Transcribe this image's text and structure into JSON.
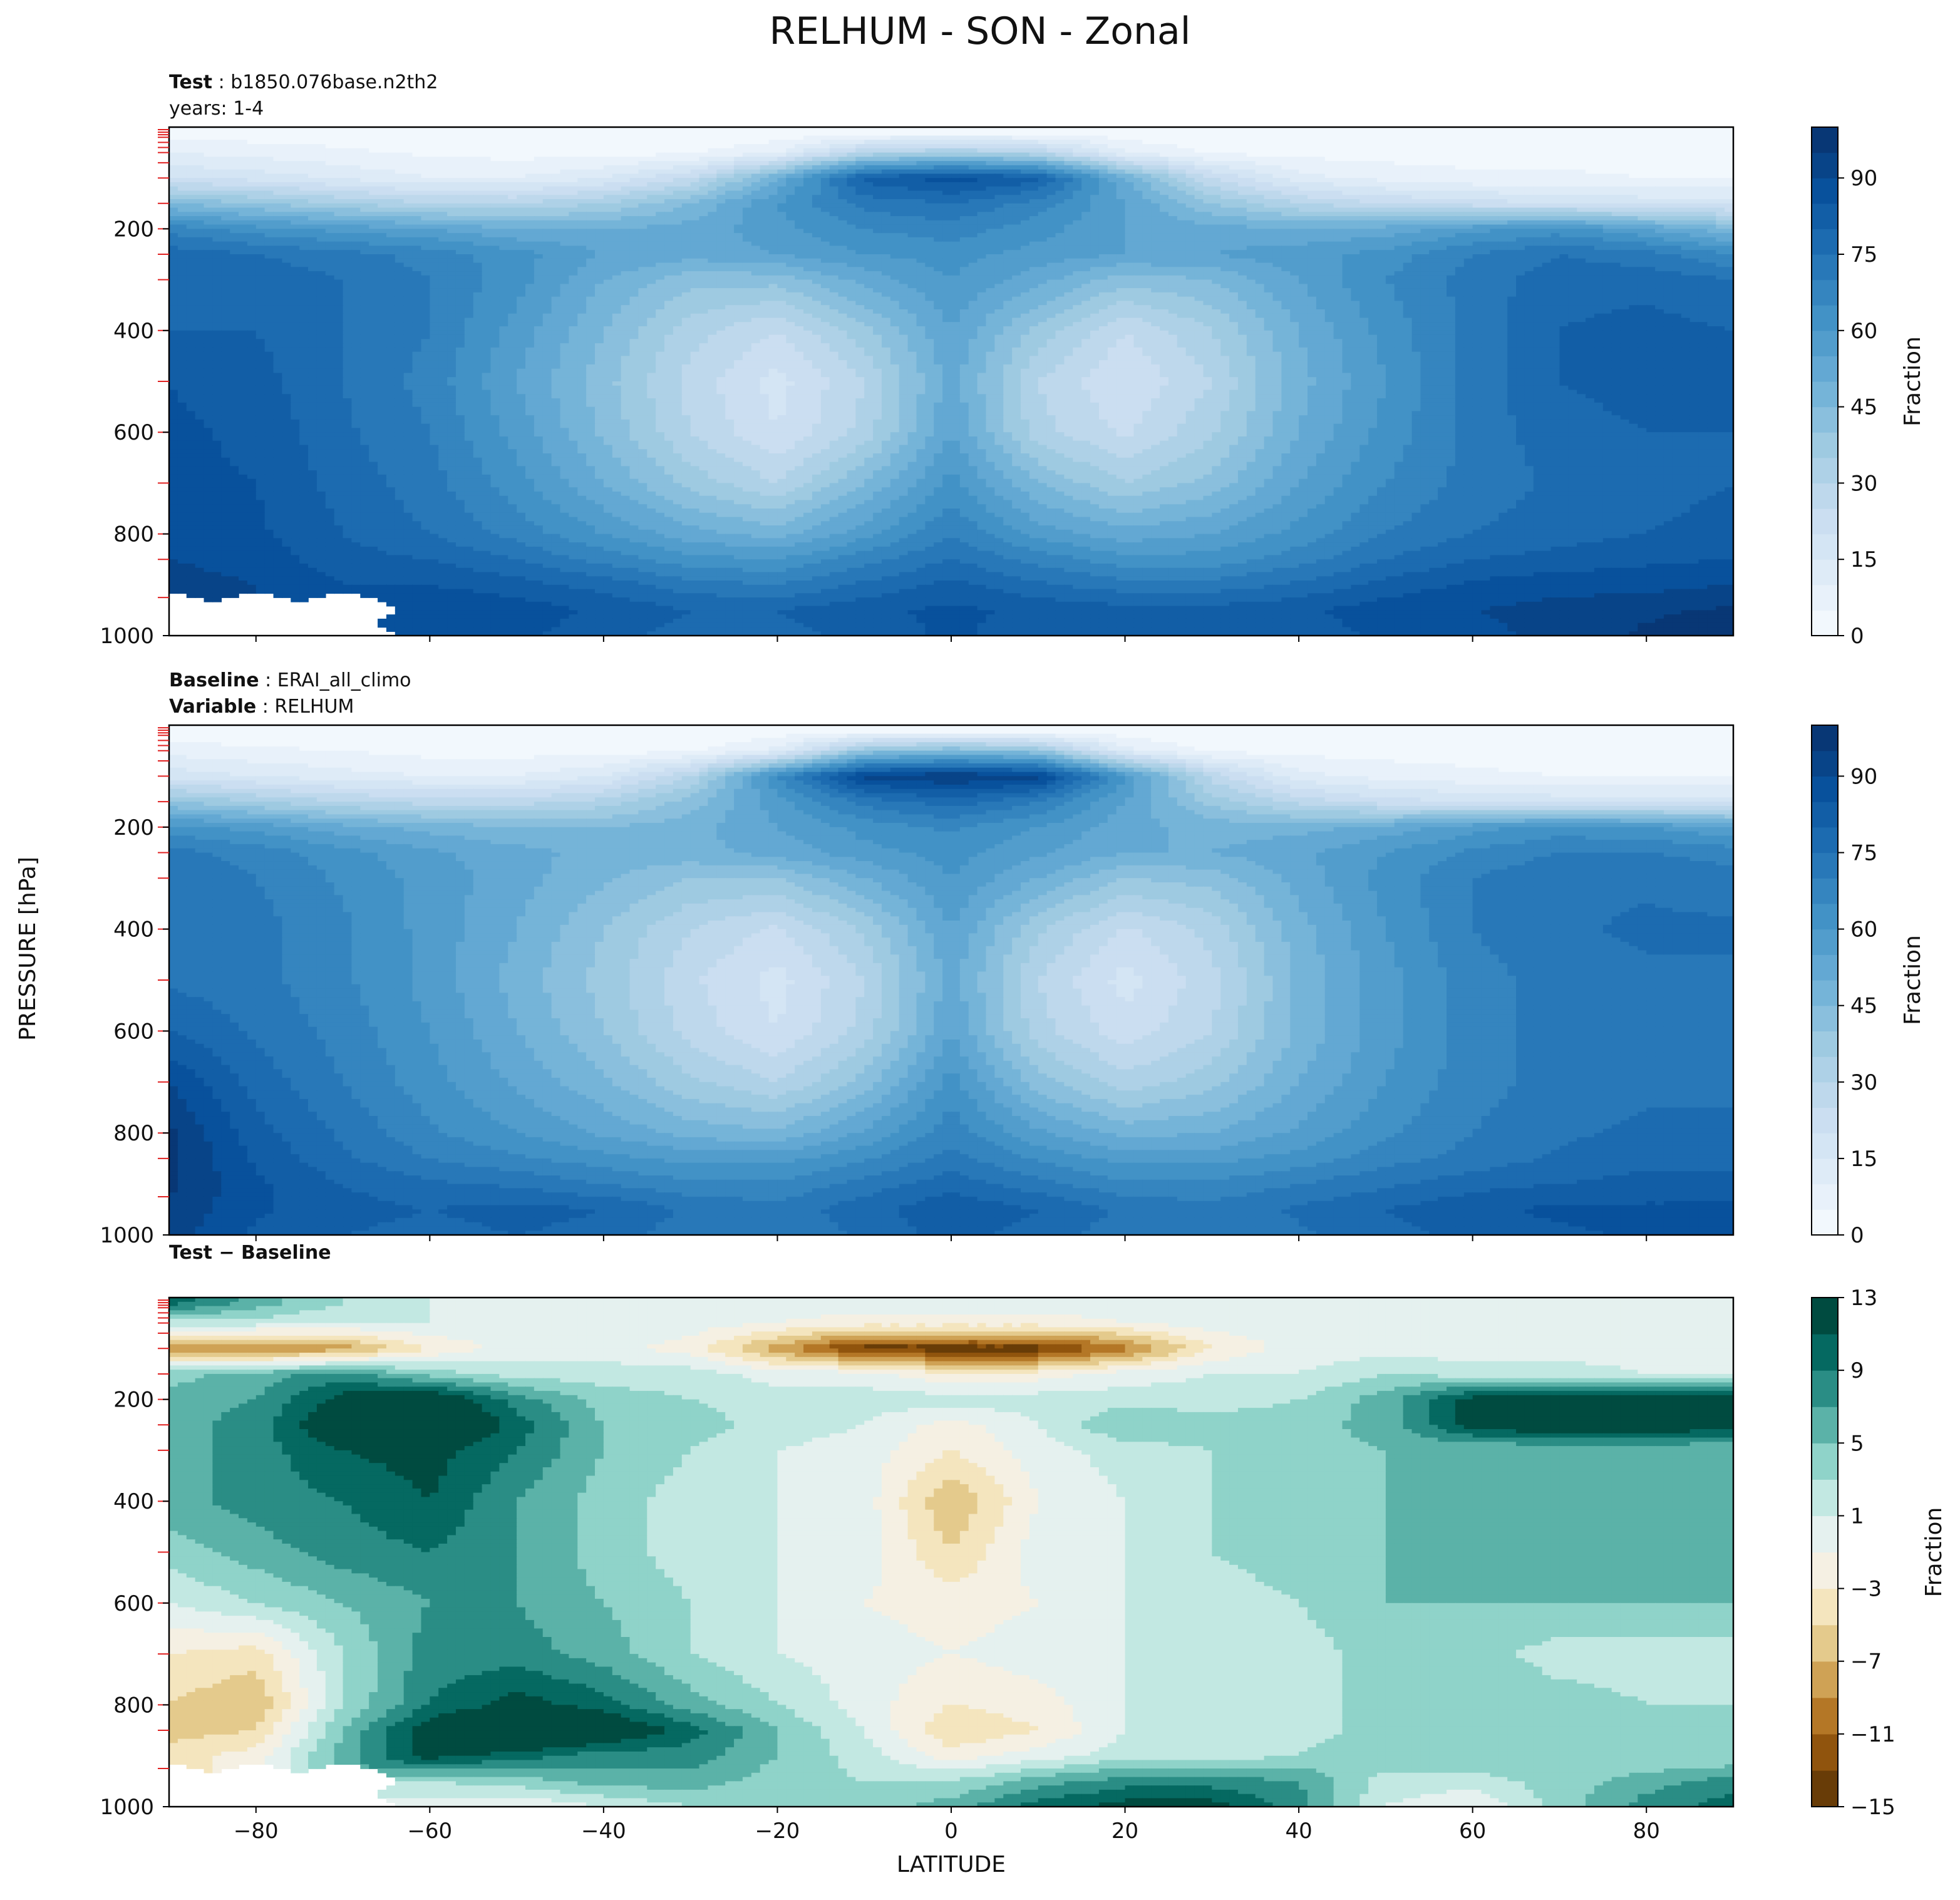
{
  "figure": {
    "title": "RELHUM - SON - Zonal",
    "y_common_label": "PRESSURE [hPa]"
  },
  "chart_data": [
    {
      "type": "heatmap",
      "panel": "test",
      "header_lines": [
        {
          "key": "Test",
          "value": "b1850.076base.n2th2"
        },
        {
          "key": "",
          "value": "years: 1-4"
        }
      ],
      "xlabel": "",
      "ylabel": "PRESSURE [hPa]",
      "xlim": [
        -90,
        90
      ],
      "ylim": [
        1000,
        0
      ],
      "x_ticks": [
        -80,
        -60,
        -40,
        -20,
        0,
        20,
        40,
        60,
        80
      ],
      "y_ticks": [
        200,
        400,
        600,
        800,
        1000
      ],
      "show_x_ticklabels": false,
      "colormap": "Blues",
      "colorbar": {
        "label": "Fraction",
        "ticks": [
          0,
          15,
          30,
          45,
          60,
          75,
          90
        ],
        "range": [
          0,
          100
        ]
      },
      "lat": [
        -90,
        -80,
        -70,
        -60,
        -50,
        -40,
        -30,
        -20,
        -10,
        0,
        10,
        20,
        30,
        40,
        50,
        60,
        70,
        80,
        90
      ],
      "lev": [
        10,
        50,
        100,
        150,
        200,
        250,
        300,
        400,
        500,
        600,
        700,
        800,
        850,
        900,
        950,
        1000
      ],
      "values": [
        [
          2,
          2,
          2,
          1,
          1,
          1,
          1,
          1,
          2,
          2,
          2,
          2,
          1,
          1,
          1,
          1,
          1,
          1,
          1
        ],
        [
          10,
          8,
          6,
          4,
          3,
          3,
          4,
          10,
          30,
          35,
          30,
          10,
          4,
          3,
          3,
          3,
          3,
          3,
          3
        ],
        [
          20,
          18,
          14,
          10,
          10,
          15,
          25,
          50,
          82,
          88,
          82,
          50,
          25,
          12,
          8,
          6,
          6,
          5,
          5
        ],
        [
          45,
          40,
          35,
          30,
          30,
          35,
          45,
          60,
          72,
          75,
          68,
          55,
          40,
          30,
          25,
          22,
          20,
          18,
          18
        ],
        [
          68,
          62,
          58,
          55,
          50,
          50,
          52,
          58,
          65,
          68,
          62,
          55,
          52,
          50,
          52,
          58,
          62,
          55,
          45
        ],
        [
          78,
          75,
          72,
          68,
          62,
          55,
          52,
          55,
          60,
          62,
          58,
          55,
          55,
          58,
          62,
          70,
          75,
          72,
          65
        ],
        [
          80,
          78,
          75,
          70,
          62,
          50,
          42,
          42,
          52,
          60,
          52,
          42,
          45,
          55,
          65,
          72,
          78,
          78,
          75
        ],
        [
          80,
          80,
          75,
          70,
          58,
          45,
          32,
          25,
          38,
          55,
          38,
          25,
          35,
          50,
          62,
          72,
          80,
          82,
          80
        ],
        [
          85,
          82,
          75,
          68,
          55,
          42,
          28,
          18,
          30,
          52,
          30,
          20,
          30,
          48,
          60,
          72,
          80,
          82,
          82
        ],
        [
          86,
          84,
          76,
          70,
          58,
          44,
          30,
          20,
          32,
          55,
          32,
          24,
          34,
          50,
          62,
          72,
          78,
          80,
          80
        ],
        [
          86,
          85,
          78,
          72,
          62,
          50,
          38,
          30,
          45,
          62,
          45,
          35,
          42,
          55,
          65,
          72,
          76,
          78,
          80
        ],
        [
          88,
          86,
          80,
          75,
          68,
          60,
          52,
          48,
          58,
          70,
          58,
          52,
          55,
          62,
          70,
          75,
          78,
          80,
          82
        ],
        [
          90,
          88,
          82,
          80,
          75,
          68,
          62,
          60,
          68,
          75,
          68,
          62,
          62,
          68,
          75,
          80,
          82,
          84,
          85
        ],
        [
          92,
          90,
          85,
          85,
          82,
          78,
          72,
          70,
          76,
          82,
          76,
          72,
          72,
          76,
          82,
          86,
          88,
          88,
          90
        ],
        [
          null,
          null,
          null,
          90,
          88,
          84,
          80,
          80,
          84,
          86,
          84,
          82,
          82,
          84,
          88,
          90,
          92,
          94,
          96
        ],
        [
          null,
          null,
          null,
          88,
          86,
          82,
          78,
          78,
          82,
          86,
          82,
          80,
          80,
          82,
          86,
          88,
          92,
          96,
          98
        ]
      ]
    },
    {
      "type": "heatmap",
      "panel": "baseline",
      "header_lines": [
        {
          "key": "Baseline",
          "value": "ERAI_all_climo"
        },
        {
          "key": "Variable",
          "value": "RELHUM"
        }
      ],
      "xlabel": "",
      "ylabel": "PRESSURE [hPa]",
      "xlim": [
        -90,
        90
      ],
      "ylim": [
        1000,
        0
      ],
      "x_ticks": [
        -80,
        -60,
        -40,
        -20,
        0,
        20,
        40,
        60,
        80
      ],
      "y_ticks": [
        200,
        400,
        600,
        800,
        1000
      ],
      "show_x_ticklabels": false,
      "colormap": "Blues",
      "colorbar": {
        "label": "Fraction",
        "ticks": [
          0,
          15,
          30,
          45,
          60,
          75,
          90
        ],
        "range": [
          0,
          100
        ]
      },
      "lat": [
        -90,
        -80,
        -70,
        -60,
        -50,
        -40,
        -30,
        -20,
        -10,
        0,
        10,
        20,
        30,
        40,
        50,
        60,
        70,
        80,
        90
      ],
      "lev": [
        10,
        50,
        100,
        150,
        200,
        250,
        300,
        400,
        500,
        600,
        700,
        800,
        850,
        900,
        950,
        1000
      ],
      "values": [
        [
          1,
          1,
          1,
          1,
          1,
          1,
          1,
          1,
          1,
          1,
          1,
          1,
          1,
          1,
          1,
          1,
          1,
          1,
          1
        ],
        [
          8,
          6,
          5,
          3,
          3,
          3,
          4,
          12,
          40,
          45,
          40,
          12,
          4,
          3,
          3,
          3,
          3,
          3,
          3
        ],
        [
          18,
          15,
          12,
          10,
          10,
          15,
          30,
          65,
          92,
          95,
          92,
          60,
          28,
          12,
          8,
          6,
          5,
          5,
          5
        ],
        [
          40,
          35,
          30,
          28,
          28,
          32,
          42,
          58,
          72,
          78,
          70,
          55,
          38,
          28,
          22,
          20,
          18,
          18,
          18
        ],
        [
          62,
          58,
          52,
          48,
          45,
          45,
          48,
          55,
          62,
          66,
          60,
          52,
          48,
          48,
          52,
          58,
          62,
          60,
          55
        ],
        [
          72,
          68,
          62,
          56,
          52,
          48,
          48,
          52,
          58,
          62,
          56,
          50,
          50,
          54,
          60,
          66,
          70,
          70,
          68
        ],
        [
          74,
          70,
          64,
          58,
          52,
          46,
          40,
          40,
          50,
          60,
          50,
          40,
          42,
          52,
          62,
          70,
          74,
          74,
          72
        ],
        [
          74,
          72,
          66,
          58,
          50,
          40,
          30,
          24,
          36,
          55,
          36,
          24,
          32,
          48,
          60,
          70,
          74,
          76,
          76
        ],
        [
          74,
          72,
          66,
          58,
          48,
          38,
          26,
          18,
          30,
          52,
          30,
          18,
          28,
          46,
          58,
          68,
          72,
          74,
          74
        ],
        [
          80,
          74,
          68,
          60,
          50,
          40,
          28,
          20,
          32,
          55,
          32,
          22,
          30,
          46,
          58,
          68,
          72,
          74,
          74
        ],
        [
          90,
          78,
          70,
          62,
          54,
          46,
          36,
          30,
          42,
          62,
          42,
          32,
          38,
          50,
          60,
          68,
          72,
          74,
          74
        ],
        [
          96,
          82,
          74,
          66,
          60,
          54,
          48,
          46,
          56,
          68,
          56,
          48,
          50,
          56,
          64,
          70,
          74,
          76,
          76
        ],
        [
          96,
          84,
          76,
          70,
          66,
          62,
          58,
          58,
          64,
          72,
          64,
          58,
          58,
          62,
          68,
          72,
          76,
          78,
          78
        ],
        [
          96,
          86,
          80,
          76,
          74,
          70,
          66,
          66,
          72,
          78,
          72,
          66,
          66,
          70,
          74,
          78,
          80,
          82,
          82
        ],
        [
          94,
          86,
          82,
          80,
          82,
          80,
          74,
          72,
          78,
          84,
          80,
          74,
          72,
          76,
          80,
          84,
          86,
          86,
          86
        ],
        [
          92,
          84,
          80,
          78,
          80,
          78,
          72,
          70,
          76,
          82,
          78,
          72,
          70,
          74,
          78,
          82,
          84,
          86,
          88
        ]
      ]
    },
    {
      "type": "heatmap",
      "panel": "difference",
      "header_lines": [
        {
          "key": "Test − Baseline",
          "value": ""
        }
      ],
      "xlabel": "LATITUDE",
      "ylabel": "PRESSURE [hPa]",
      "xlim": [
        -90,
        90
      ],
      "ylim": [
        1000,
        0
      ],
      "x_ticks": [
        -80,
        -60,
        -40,
        -20,
        0,
        20,
        40,
        60,
        80
      ],
      "y_ticks": [
        200,
        400,
        600,
        800,
        1000
      ],
      "show_x_ticklabels": true,
      "colormap": "BrBG",
      "colorbar": {
        "label": "Fraction",
        "ticks": [
          -15,
          -11,
          -7,
          -3,
          1,
          5,
          9,
          13
        ],
        "range": [
          -15,
          13
        ]
      },
      "lat": [
        -90,
        -80,
        -70,
        -60,
        -50,
        -40,
        -30,
        -20,
        -10,
        0,
        10,
        20,
        30,
        40,
        50,
        60,
        70,
        80,
        90
      ],
      "lev": [
        10,
        50,
        100,
        150,
        200,
        250,
        300,
        400,
        500,
        600,
        700,
        800,
        850,
        900,
        950,
        1000
      ],
      "values": [
        [
          10,
          6,
          3,
          1,
          0,
          0,
          0,
          0,
          0,
          0,
          0,
          0,
          0,
          0,
          0,
          0,
          0,
          0,
          0
        ],
        [
          2,
          2,
          1,
          1,
          0,
          0,
          0,
          -1,
          -2,
          -2,
          -2,
          -1,
          0,
          0,
          0,
          0,
          0,
          0,
          0
        ],
        [
          -8,
          -10,
          -8,
          -3,
          0,
          0,
          -2,
          -8,
          -14,
          -14,
          -14,
          -10,
          -3,
          0,
          0,
          0,
          0,
          0,
          0
        ],
        [
          4,
          6,
          8,
          4,
          2,
          2,
          2,
          0,
          0,
          -3,
          -2,
          0,
          1,
          1,
          3,
          2,
          2,
          1,
          1
        ],
        [
          6,
          7,
          12,
          14,
          8,
          4,
          3,
          2,
          2,
          2,
          2,
          2,
          2,
          3,
          6,
          12,
          14,
          14,
          14
        ],
        [
          6,
          8,
          14,
          16,
          10,
          5,
          4,
          2,
          1,
          -2,
          1,
          5,
          4,
          4,
          6,
          12,
          14,
          14,
          12
        ],
        [
          6,
          8,
          11,
          12,
          9,
          5,
          3,
          1,
          0,
          -3,
          0,
          2,
          3,
          4,
          5,
          5,
          5,
          5,
          5
        ],
        [
          6,
          8,
          9,
          11,
          7,
          4,
          2,
          1,
          0,
          -7,
          -1,
          1,
          3,
          4,
          5,
          5,
          6,
          7,
          6
        ],
        [
          4,
          6,
          8,
          9,
          7,
          4,
          2,
          1,
          0,
          -5,
          0,
          1,
          3,
          4,
          5,
          6,
          7,
          6,
          6
        ],
        [
          1,
          3,
          5,
          7,
          7,
          5,
          3,
          1,
          -1,
          -2,
          -1,
          1,
          2,
          3,
          5,
          5,
          5,
          5,
          5
        ],
        [
          -3,
          -4,
          3,
          8,
          8,
          6,
          3,
          1,
          0,
          -1,
          0,
          1,
          1,
          2,
          4,
          4,
          2,
          2,
          2
        ],
        [
          -5,
          -7,
          3,
          9,
          12,
          10,
          6,
          3,
          0,
          -3,
          -2,
          1,
          1,
          2,
          4,
          5,
          4,
          3,
          3
        ],
        [
          -6,
          -5,
          5,
          13,
          16,
          14,
          10,
          5,
          1,
          -5,
          -3,
          1,
          1,
          2,
          4,
          5,
          4,
          3,
          3
        ],
        [
          -4,
          -2,
          6,
          12,
          10,
          8,
          8,
          5,
          2,
          -2,
          0,
          2,
          2,
          3,
          5,
          5,
          4,
          3,
          3
        ],
        [
          null,
          null,
          null,
          3,
          4,
          6,
          6,
          4,
          3,
          3,
          6,
          8,
          8,
          7,
          2,
          2,
          4,
          6,
          8
        ],
        [
          null,
          null,
          null,
          0,
          -1,
          1,
          3,
          3,
          4,
          6,
          10,
          12,
          12,
          8,
          1,
          -1,
          4,
          8,
          10
        ]
      ]
    }
  ]
}
